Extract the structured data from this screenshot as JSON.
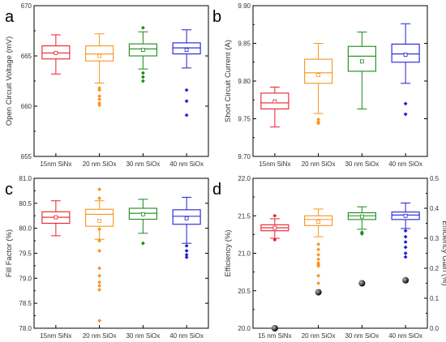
{
  "chart_data": [
    {
      "panel": "a",
      "type": "box",
      "categories": [
        "15nm SiNx",
        "20 nm SiOx",
        "30 nm SiOx",
        "40 nm SiOx"
      ],
      "ylabel": "Open Circuit Voltage (mV)",
      "ylim": [
        655,
        670
      ],
      "yticks": [
        655,
        660,
        665,
        670
      ],
      "ytick_format": 0,
      "colors": [
        "#e8202a",
        "#f7941d",
        "#1a8a1a",
        "#1f1fd6"
      ],
      "boxes": [
        {
          "whisker_low": 663.2,
          "q1": 664.7,
          "median": 665.3,
          "mean": 665.3,
          "q3": 666.0,
          "whisker_high": 667.1,
          "outliers": []
        },
        {
          "whisker_low": 662.3,
          "q1": 664.5,
          "median": 665.2,
          "mean": 665.0,
          "q3": 666.0,
          "whisker_high": 667.2,
          "outliers": [
            661.8,
            661.6,
            661.0,
            660.7,
            660.3,
            660.1
          ]
        },
        {
          "whisker_low": 663.7,
          "q1": 665.0,
          "median": 665.7,
          "mean": 665.6,
          "q3": 666.2,
          "whisker_high": 667.4,
          "outliers": [
            667.8,
            663.3,
            662.9,
            662.5
          ]
        },
        {
          "whisker_low": 663.8,
          "q1": 665.2,
          "median": 665.8,
          "mean": 665.6,
          "q3": 666.3,
          "whisker_high": 667.6,
          "outliers": [
            661.6,
            660.5,
            659.1
          ]
        }
      ]
    },
    {
      "panel": "b",
      "type": "box",
      "categories": [
        "15nm SiNx",
        "20 nm SiOx",
        "30 nm SiOx",
        "40 nm SiOx"
      ],
      "ylabel": "Short Circuit Current (A)",
      "ylim": [
        9.7,
        9.9
      ],
      "yticks": [
        9.7,
        9.75,
        9.8,
        9.85,
        9.9
      ],
      "ytick_format": 2,
      "colors": [
        "#e8202a",
        "#f7941d",
        "#1a8a1a",
        "#1f1fd6"
      ],
      "boxes": [
        {
          "whisker_low": 9.739,
          "q1": 9.763,
          "median": 9.771,
          "mean": 9.773,
          "q3": 9.784,
          "whisker_high": 9.792,
          "outliers": []
        },
        {
          "whisker_low": 9.757,
          "q1": 9.797,
          "median": 9.811,
          "mean": 9.808,
          "q3": 9.829,
          "whisker_high": 9.85,
          "outliers": [
            9.749,
            9.746,
            9.744
          ]
        },
        {
          "whisker_low": 9.763,
          "q1": 9.813,
          "median": 9.833,
          "mean": 9.826,
          "q3": 9.846,
          "whisker_high": 9.865,
          "outliers": []
        },
        {
          "whisker_low": 9.797,
          "q1": 9.825,
          "median": 9.836,
          "mean": 9.835,
          "q3": 9.849,
          "whisker_high": 9.876,
          "outliers": [
            9.77,
            9.756
          ]
        }
      ]
    },
    {
      "panel": "c",
      "type": "box",
      "categories": [
        "15nm SiNx",
        "20 nm SiOx",
        "30 nm SiOx",
        "40 nm SiOx"
      ],
      "ylabel": "Fill Factor (%)",
      "ylim": [
        78.0,
        81.0
      ],
      "yticks": [
        78.0,
        78.5,
        79.0,
        79.5,
        80.0,
        80.5,
        81.0
      ],
      "ytick_format": 1,
      "colors": [
        "#e8202a",
        "#f7941d",
        "#1a8a1a",
        "#1f1fd6"
      ],
      "boxes": [
        {
          "whisker_low": 79.85,
          "q1": 80.1,
          "median": 80.22,
          "mean": 80.22,
          "q3": 80.33,
          "whisker_high": 80.55,
          "outliers": []
        },
        {
          "whisker_low": 79.78,
          "q1": 80.04,
          "median": 80.28,
          "mean": 80.15,
          "q3": 80.38,
          "whisker_high": 80.55,
          "outliers": [
            80.78,
            80.6,
            79.98,
            79.75,
            79.55,
            79.2,
            79.05,
            78.92,
            78.85,
            78.77,
            78.15
          ]
        },
        {
          "whisker_low": 79.9,
          "q1": 80.18,
          "median": 80.3,
          "mean": 80.28,
          "q3": 80.4,
          "whisker_high": 80.58,
          "outliers": [
            79.7
          ]
        },
        {
          "whisker_low": 79.7,
          "q1": 80.08,
          "median": 80.24,
          "mean": 80.2,
          "q3": 80.37,
          "whisker_high": 80.62,
          "outliers": [
            79.65,
            79.55,
            79.47,
            79.42
          ]
        }
      ]
    },
    {
      "panel": "d",
      "type": "box",
      "categories": [
        "15 nm SiNx",
        "20 nm SiOx",
        "30 nm SiOx",
        "40 nm SiOx"
      ],
      "ylabel": "Efficiency (%)",
      "ylabel_right": "Efficiency Gain (%)",
      "ylim": [
        20.0,
        22.0
      ],
      "yticks": [
        20.0,
        20.5,
        21.0,
        21.5,
        22.0
      ],
      "ytick_format": 1,
      "y2lim": [
        0.0,
        0.5
      ],
      "y2ticks": [
        0.0,
        0.1,
        0.2,
        0.3,
        0.4,
        0.5
      ],
      "colors": [
        "#e8202a",
        "#f7941d",
        "#1a8a1a",
        "#1f1fd6"
      ],
      "boxes": [
        {
          "whisker_low": 21.2,
          "q1": 21.3,
          "median": 21.34,
          "mean": 21.34,
          "q3": 21.38,
          "whisker_high": 21.46,
          "outliers": [
            21.5,
            21.18
          ]
        },
        {
          "whisker_low": 21.22,
          "q1": 21.37,
          "median": 21.45,
          "mean": 21.42,
          "q3": 21.5,
          "whisker_high": 21.59,
          "outliers": [
            21.12,
            21.05,
            20.98,
            20.92,
            20.87,
            20.85,
            20.83,
            20.7,
            20.6
          ]
        },
        {
          "whisker_low": 21.32,
          "q1": 21.45,
          "median": 21.5,
          "mean": 21.49,
          "q3": 21.54,
          "whisker_high": 21.62,
          "outliers": [
            21.28,
            21.26
          ]
        },
        {
          "whisker_low": 21.33,
          "q1": 21.45,
          "median": 21.51,
          "mean": 21.5,
          "q3": 21.55,
          "whisker_high": 21.67,
          "outliers": [
            21.3,
            21.22,
            21.15,
            21.08,
            21.0,
            20.95
          ]
        }
      ],
      "efficiency_gain": [
        0.0,
        0.12,
        0.15,
        0.16
      ]
    }
  ]
}
